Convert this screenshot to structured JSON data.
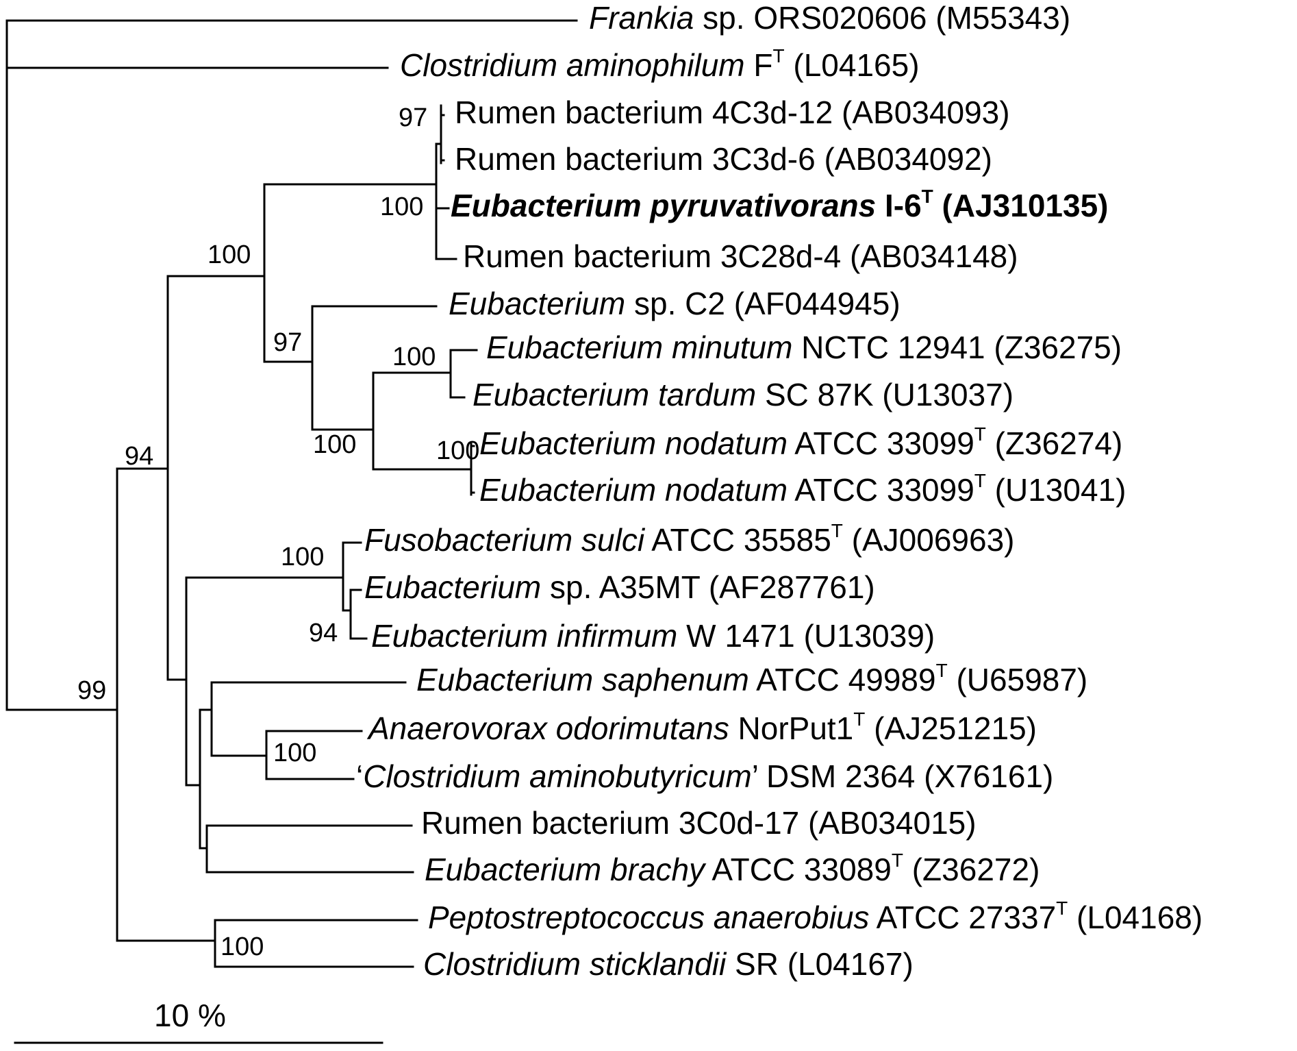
{
  "scale_bar": {
    "label": "10 %"
  },
  "taxa": [
    {
      "id": "frankia",
      "parts": [
        {
          "t": "Frankia",
          "i": true
        },
        {
          "t": " sp. ORS020606 (M55343)"
        }
      ]
    },
    {
      "id": "c-aminophilum",
      "parts": [
        {
          "t": "Clostridium aminophilum",
          "i": true
        },
        {
          "t": " F"
        },
        {
          "t": "T",
          "sup": true
        },
        {
          "t": " (L04165)"
        }
      ]
    },
    {
      "id": "rumen-4c3d-12",
      "parts": [
        {
          "t": "Rumen bacterium 4C3d-12 (AB034093)"
        }
      ]
    },
    {
      "id": "rumen-3c3d-6",
      "parts": [
        {
          "t": "Rumen bacterium 3C3d-6 (AB034092)"
        }
      ]
    },
    {
      "id": "e-pyruvativorans",
      "bold": true,
      "parts": [
        {
          "t": "Eubacterium pyruvativorans",
          "i": true
        },
        {
          "t": " I-6"
        },
        {
          "t": "T",
          "sup": true
        },
        {
          "t": " (AJ310135)"
        }
      ]
    },
    {
      "id": "rumen-3c28d-4",
      "parts": [
        {
          "t": "Rumen bacterium 3C28d-4 (AB034148)"
        }
      ]
    },
    {
      "id": "eubacterium-c2",
      "parts": [
        {
          "t": "Eubacterium",
          "i": true
        },
        {
          "t": " sp. C2 (AF044945)"
        }
      ]
    },
    {
      "id": "e-minutum",
      "parts": [
        {
          "t": "Eubacterium minutum",
          "i": true
        },
        {
          "t": " NCTC 12941 (Z36275)"
        }
      ]
    },
    {
      "id": "e-tardum",
      "parts": [
        {
          "t": "Eubacterium tardum",
          "i": true
        },
        {
          "t": " SC 87K (U13037)"
        }
      ]
    },
    {
      "id": "e-nodatum-1",
      "parts": [
        {
          "t": "Eubacterium nodatum",
          "i": true
        },
        {
          "t": " ATCC 33099"
        },
        {
          "t": "T",
          "sup": true
        },
        {
          "t": " (Z36274)"
        }
      ]
    },
    {
      "id": "e-nodatum-2",
      "parts": [
        {
          "t": "Eubacterium nodatum",
          "i": true
        },
        {
          "t": " ATCC 33099"
        },
        {
          "t": "T",
          "sup": true
        },
        {
          "t": " (U13041)"
        }
      ]
    },
    {
      "id": "f-sulci",
      "parts": [
        {
          "t": "Fusobacterium sulci",
          "i": true
        },
        {
          "t": " ATCC 35585"
        },
        {
          "t": "T",
          "sup": true
        },
        {
          "t": " (AJ006963)"
        }
      ]
    },
    {
      "id": "eubacterium-a35mt",
      "parts": [
        {
          "t": "Eubacterium",
          "i": true
        },
        {
          "t": " sp. A35MT (AF287761)"
        }
      ]
    },
    {
      "id": "e-infirmum",
      "parts": [
        {
          "t": "Eubacterium infirmum",
          "i": true
        },
        {
          "t": " W 1471 (U13039)"
        }
      ]
    },
    {
      "id": "e-saphenum",
      "parts": [
        {
          "t": "Eubacterium saphenum",
          "i": true
        },
        {
          "t": " ATCC 49989"
        },
        {
          "t": "T",
          "sup": true
        },
        {
          "t": " (U65987)"
        }
      ]
    },
    {
      "id": "a-odorimutans",
      "parts": [
        {
          "t": "Anaerovorax odorimutans",
          "i": true
        },
        {
          "t": " NorPut1"
        },
        {
          "t": "T",
          "sup": true
        },
        {
          "t": " (AJ251215)"
        }
      ]
    },
    {
      "id": "c-aminobutyricum",
      "parts": [
        {
          "t": "‘"
        },
        {
          "t": "Clostridium aminobutyricum",
          "i": true
        },
        {
          "t": "’ DSM 2364 (X76161)"
        }
      ]
    },
    {
      "id": "rumen-3c0d-17",
      "parts": [
        {
          "t": "Rumen bacterium 3C0d-17 (AB034015)"
        }
      ]
    },
    {
      "id": "e-brachy",
      "parts": [
        {
          "t": "Eubacterium brachy",
          "i": true
        },
        {
          "t": " ATCC 33089"
        },
        {
          "t": "T",
          "sup": true
        },
        {
          "t": " (Z36272)"
        }
      ]
    },
    {
      "id": "p-anaerobius",
      "parts": [
        {
          "t": "Peptostreptococcus anaerobius",
          "i": true
        },
        {
          "t": " ATCC 27337"
        },
        {
          "t": "T",
          "sup": true
        },
        {
          "t": " (L04168)"
        }
      ]
    },
    {
      "id": "c-sticklandii",
      "parts": [
        {
          "t": "Clostridium sticklandii",
          "i": true
        },
        {
          "t": " SR (L04167)"
        }
      ]
    }
  ],
  "bootstrap_values": [
    {
      "id": "rumen-pair",
      "value": "97"
    },
    {
      "id": "pyruvativorans-clade",
      "value": "100"
    },
    {
      "id": "rumen-eubacterium-clade",
      "value": "100"
    },
    {
      "id": "eubacterium-c2-clade",
      "value": "97"
    },
    {
      "id": "minutum-tardum",
      "value": "100"
    },
    {
      "id": "minutum-nodatum-clade",
      "value": "100"
    },
    {
      "id": "nodatum-pair",
      "value": "100"
    },
    {
      "id": "ingroup",
      "value": "94"
    },
    {
      "id": "fusobacterium-clade",
      "value": "100"
    },
    {
      "id": "a35mt-infirmum",
      "value": "94"
    },
    {
      "id": "anaerovorax-clostridium",
      "value": "100"
    },
    {
      "id": "root-clade",
      "value": "99"
    },
    {
      "id": "peptostreptococcus-clostridium",
      "value": "100"
    }
  ]
}
